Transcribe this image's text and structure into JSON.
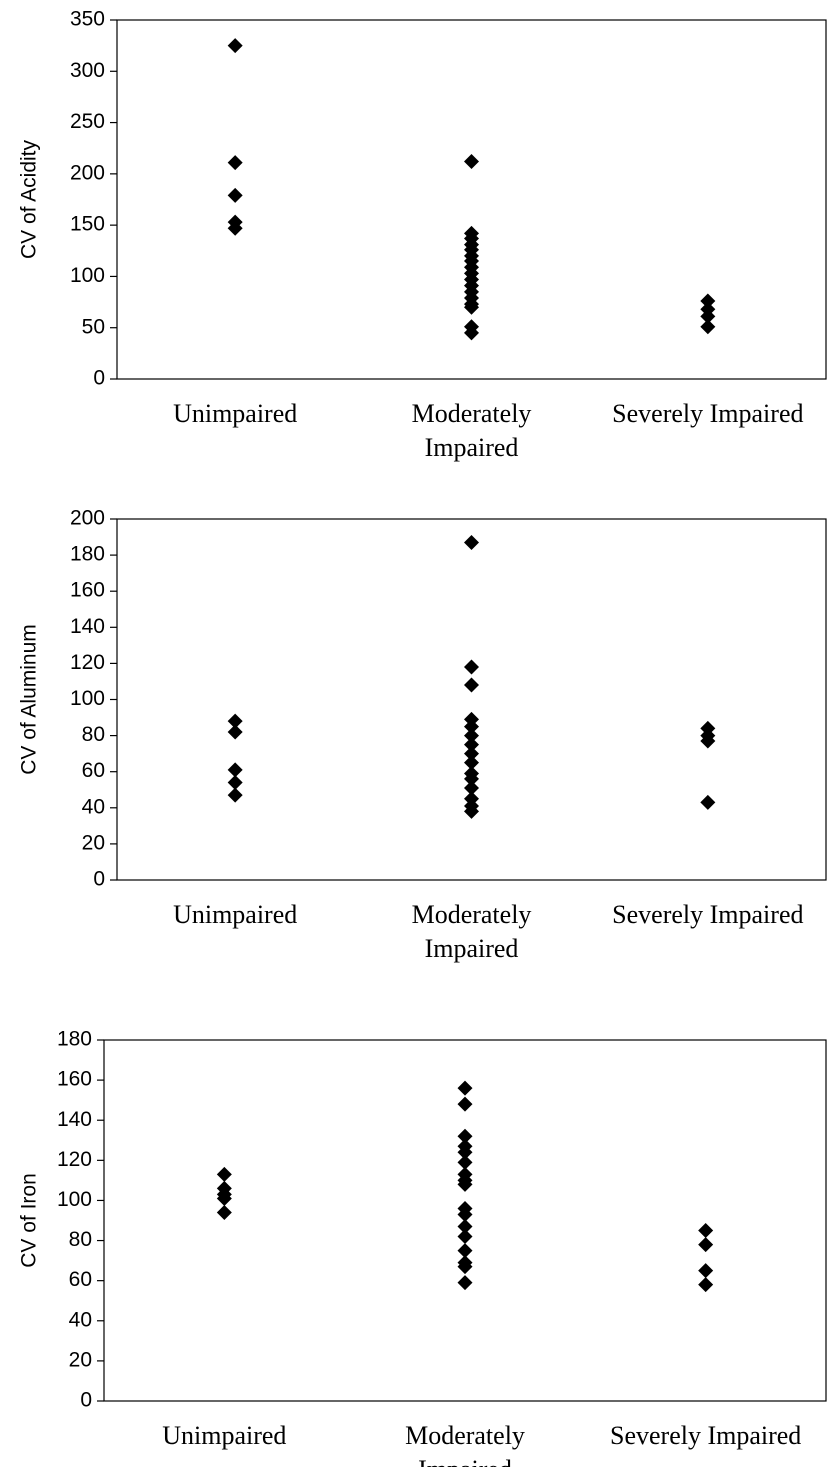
{
  "chart_data": [
    {
      "type": "scatter",
      "ylabel": "CV of Acidity",
      "color": "#000000",
      "categories": [
        "Unimpaired",
        "Moderately Impaired",
        "Severely Impaired"
      ],
      "values": [
        [
          325,
          211,
          179,
          153,
          147
        ],
        [
          212,
          142,
          137,
          131,
          126,
          120,
          115,
          109,
          103,
          97,
          91,
          85,
          79,
          73,
          70,
          51,
          45
        ],
        [
          76,
          68,
          61,
          51
        ]
      ],
      "ylim": [
        0,
        350
      ],
      "yticks": [
        0,
        50,
        100,
        150,
        200,
        250,
        300,
        350
      ]
    },
    {
      "type": "scatter",
      "ylabel": "CV of Aluminum",
      "color": "#000000",
      "categories": [
        "Unimpaired",
        "Moderately Impaired",
        "Severely Impaired"
      ],
      "values": [
        [
          88,
          82,
          61,
          54,
          47
        ],
        [
          187,
          118,
          108,
          89,
          85,
          80,
          75,
          70,
          65,
          59,
          56,
          51,
          45,
          41,
          38
        ],
        [
          84,
          80,
          77,
          43
        ]
      ],
      "ylim": [
        0,
        200
      ],
      "yticks": [
        0,
        20,
        40,
        60,
        80,
        100,
        120,
        140,
        160,
        180,
        200
      ]
    },
    {
      "type": "scatter",
      "ylabel": "CV of Iron",
      "color": "#000000",
      "categories": [
        "Unimpaired",
        "Moderately Impaired",
        "Severely Impaired"
      ],
      "values": [
        [
          113,
          106,
          103,
          101,
          94
        ],
        [
          156,
          148,
          132,
          127,
          124,
          119,
          113,
          110,
          108,
          96,
          93,
          87,
          82,
          75,
          69,
          67,
          59
        ],
        [
          85,
          78,
          65,
          58
        ]
      ],
      "ylim": [
        0,
        180
      ],
      "yticks": [
        0,
        20,
        40,
        60,
        80,
        100,
        120,
        140,
        160,
        180
      ]
    }
  ]
}
